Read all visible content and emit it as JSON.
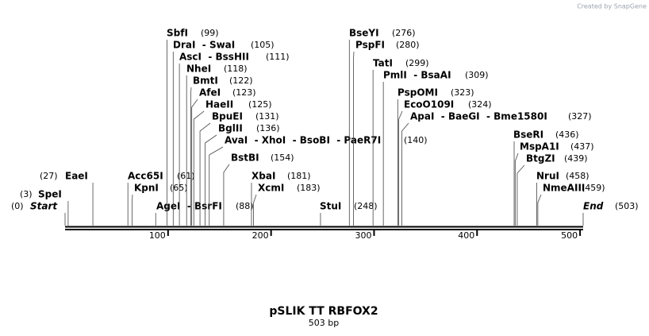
{
  "watermark": "Created by SnapGene",
  "title": "pSLIK TT RBFOX2",
  "subtitle": "503 bp",
  "sequence_length": 503,
  "ruler": {
    "ticks": [
      100,
      200,
      300,
      400,
      500
    ]
  },
  "sites": [
    {
      "label": "Start",
      "position": 0,
      "position_label": "(0)"
    },
    {
      "label": "SpeI",
      "position": 3,
      "position_label": "(3)"
    },
    {
      "label": "EaeI",
      "position": 27,
      "position_label": "(27)"
    },
    {
      "label": "Acc65I",
      "position": 61,
      "position_label": "(61)"
    },
    {
      "label": "KpnI",
      "position": 65,
      "position_label": "(65)"
    },
    {
      "label": "AgeI  - BsrFI",
      "position": 88,
      "position_label": "(88)"
    },
    {
      "label": "SbfI",
      "position": 99,
      "position_label": "(99)"
    },
    {
      "label": "DraI  - SwaI",
      "position": 105,
      "position_label": "(105)"
    },
    {
      "label": "AscI  - BssHII",
      "position": 111,
      "position_label": "(111)"
    },
    {
      "label": "NheI",
      "position": 118,
      "position_label": "(118)"
    },
    {
      "label": "BmtI",
      "position": 122,
      "position_label": "(122)"
    },
    {
      "label": "AfeI",
      "position": 123,
      "position_label": "(123)"
    },
    {
      "label": "HaeII",
      "position": 125,
      "position_label": "(125)"
    },
    {
      "label": "BpuEI",
      "position": 131,
      "position_label": "(131)"
    },
    {
      "label": "BglII",
      "position": 136,
      "position_label": "(136)"
    },
    {
      "label": "AvaI  - XhoI  - BsoBI  - PaeR7I",
      "position": 140,
      "position_label": "(140)"
    },
    {
      "label": "BstBI",
      "position": 154,
      "position_label": "(154)"
    },
    {
      "label": "XbaI",
      "position": 181,
      "position_label": "(181)"
    },
    {
      "label": "XcmI",
      "position": 183,
      "position_label": "(183)"
    },
    {
      "label": "StuI",
      "position": 248,
      "position_label": "(248)"
    },
    {
      "label": "BseYI",
      "position": 276,
      "position_label": "(276)"
    },
    {
      "label": "PspFI",
      "position": 280,
      "position_label": "(280)"
    },
    {
      "label": "TatI",
      "position": 299,
      "position_label": "(299)"
    },
    {
      "label": "PmlI  - BsaAI",
      "position": 309,
      "position_label": "(309)"
    },
    {
      "label": "PspOMI",
      "position": 323,
      "position_label": "(323)"
    },
    {
      "label": "EcoO109I",
      "position": 324,
      "position_label": "(324)"
    },
    {
      "label": "ApaI  - BaeGI  - Bme1580I",
      "position": 327,
      "position_label": "(327)"
    },
    {
      "label": "BseRI",
      "position": 436,
      "position_label": "(436)"
    },
    {
      "label": "MspA1I",
      "position": 437,
      "position_label": "(437)"
    },
    {
      "label": "BtgZI",
      "position": 439,
      "position_label": "(439)"
    },
    {
      "label": "NruI",
      "position": 458,
      "position_label": "(458)"
    },
    {
      "label": "NmeAIII",
      "position": 459,
      "position_label": "(459)"
    },
    {
      "label": "End",
      "position": 503,
      "position_label": "(503)"
    }
  ]
}
